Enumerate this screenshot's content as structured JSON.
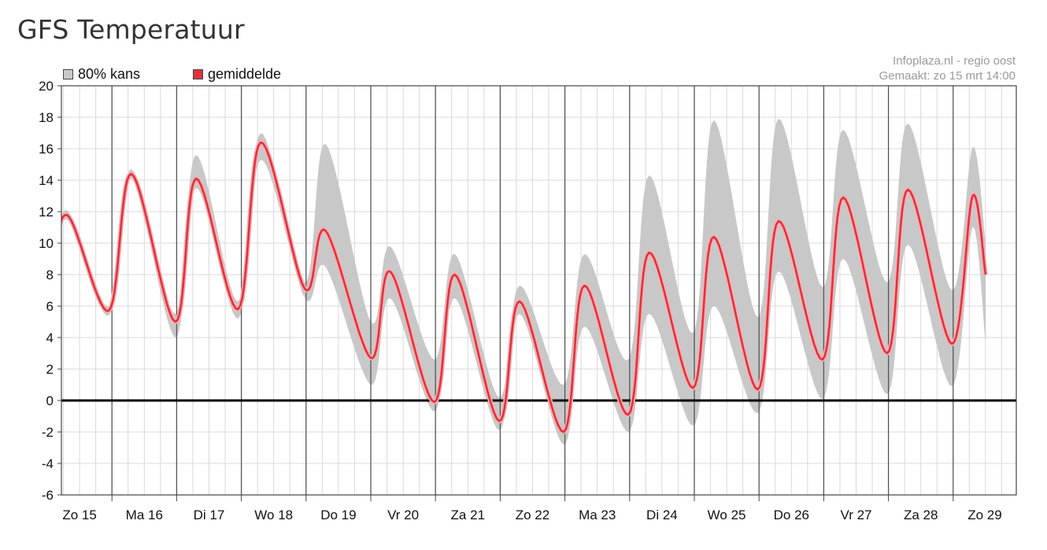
{
  "page": {
    "title": "GFS Temperatuur"
  },
  "legend": {
    "range_label": "80% kans",
    "mean_label": "gemiddelde"
  },
  "source": {
    "line1": "Infoplaza.nl - regio oost",
    "line2": "Gemaakt: zo 15 mrt 14:00"
  },
  "colors": {
    "band": "#c8c8c8",
    "mean": "#e0323c",
    "mean_glow": "#f4b0b4",
    "zero_line": "#000000",
    "day_line": "#555555",
    "grid": "#d9d9d9"
  },
  "chart_data": {
    "type": "area",
    "title": "GFS Temperatuur",
    "xlabel": "",
    "ylabel": "",
    "ylim": [
      -6,
      20
    ],
    "yticks": [
      20,
      18,
      16,
      14,
      12,
      10,
      8,
      6,
      4,
      2,
      0,
      -2,
      -4,
      -6
    ],
    "grid": true,
    "legend_position": "top-left",
    "categories": [
      "Zo 15",
      "Ma 16",
      "Di 17",
      "Wo 18",
      "Do 19",
      "Vr 20",
      "Za 21",
      "Zo 22",
      "Ma 23",
      "Di 24",
      "Wo 25",
      "Do 26",
      "Vr 27",
      "Za 28",
      "Zo 29"
    ],
    "x_unit": "days from start of Zo 15",
    "series": [
      {
        "name": "gemiddelde",
        "kind": "line",
        "points": [
          [
            0.0,
            6.7
          ],
          [
            0.3,
            11.8
          ],
          [
            0.95,
            5.7
          ],
          [
            1.3,
            14.4
          ],
          [
            1.98,
            5.0
          ],
          [
            2.3,
            14.1
          ],
          [
            2.95,
            5.8
          ],
          [
            3.3,
            16.4
          ],
          [
            3.98,
            7.1
          ],
          [
            4.3,
            10.8
          ],
          [
            5.0,
            2.7
          ],
          [
            5.3,
            8.2
          ],
          [
            5.98,
            -0.1
          ],
          [
            6.3,
            8.0
          ],
          [
            6.98,
            -1.3
          ],
          [
            7.3,
            6.3
          ],
          [
            7.98,
            -2.0
          ],
          [
            8.3,
            7.3
          ],
          [
            8.98,
            -0.9
          ],
          [
            9.3,
            9.4
          ],
          [
            9.98,
            0.8
          ],
          [
            10.3,
            10.4
          ],
          [
            10.98,
            0.7
          ],
          [
            11.3,
            11.4
          ],
          [
            11.98,
            2.6
          ],
          [
            12.3,
            12.9
          ],
          [
            12.98,
            3.0
          ],
          [
            13.3,
            13.4
          ],
          [
            13.98,
            3.6
          ],
          [
            14.3,
            13.0
          ],
          [
            14.5,
            8.0
          ]
        ]
      },
      {
        "name": "80% kans",
        "kind": "band",
        "points": [
          [
            0.0,
            6.5,
            7.0
          ],
          [
            0.3,
            11.5,
            12.1
          ],
          [
            0.95,
            5.4,
            6.0
          ],
          [
            1.3,
            14.1,
            14.7
          ],
          [
            1.98,
            4.0,
            5.5
          ],
          [
            2.3,
            13.5,
            15.6
          ],
          [
            2.95,
            5.2,
            6.3
          ],
          [
            3.3,
            15.3,
            17.0
          ],
          [
            3.98,
            6.5,
            7.5
          ],
          [
            4.3,
            8.5,
            16.3
          ],
          [
            5.0,
            1.0,
            5.0
          ],
          [
            5.3,
            6.5,
            9.8
          ],
          [
            5.98,
            -0.7,
            2.6
          ],
          [
            6.3,
            6.5,
            9.3
          ],
          [
            6.98,
            -1.9,
            0.2
          ],
          [
            7.3,
            5.5,
            7.3
          ],
          [
            7.98,
            -2.8,
            1.0
          ],
          [
            8.3,
            4.7,
            9.3
          ],
          [
            8.98,
            -2.0,
            2.6
          ],
          [
            9.3,
            5.5,
            14.3
          ],
          [
            9.98,
            -1.6,
            4.3
          ],
          [
            10.3,
            6.0,
            17.8
          ],
          [
            10.98,
            -0.8,
            5.3
          ],
          [
            11.3,
            8.2,
            17.9
          ],
          [
            11.98,
            0.1,
            7.2
          ],
          [
            12.3,
            9.0,
            17.2
          ],
          [
            12.98,
            0.4,
            7.5
          ],
          [
            13.3,
            9.9,
            17.6
          ],
          [
            13.98,
            0.9,
            7.0
          ],
          [
            14.3,
            11.0,
            16.1
          ],
          [
            14.5,
            3.6,
            10.0
          ]
        ]
      }
    ]
  }
}
